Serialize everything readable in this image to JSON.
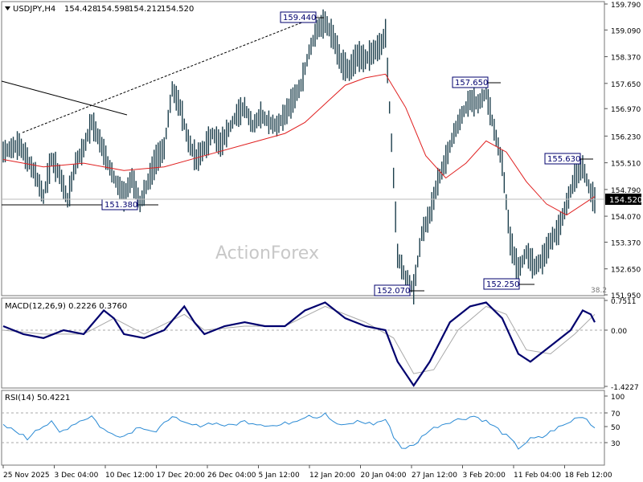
{
  "chart_data": {
    "type": "line",
    "symbol_header": "USDJPY,H4",
    "ohlc": {
      "open": "154.428",
      "high": "154.598",
      "low": "154.212",
      "close": "154.520"
    },
    "watermark": "ActionForex",
    "price_axis": {
      "min": 151.95,
      "max": 159.79,
      "ticks": [
        "159.790",
        "159.090",
        "158.370",
        "157.650",
        "156.970",
        "156.230",
        "155.510",
        "154.790",
        "154.070",
        "153.370",
        "152.650",
        "151.950"
      ]
    },
    "current_price": "154.520",
    "fib_label": "38.2",
    "x_labels": [
      "25 Nov 2025",
      "3 Dec 04:00",
      "10 Dec 12:00",
      "17 Dec 20:00",
      "26 Dec 04:00",
      "5 Jan 12:00",
      "12 Jan 20:00",
      "20 Jan 04:00",
      "27 Jan 12:00",
      "3 Feb 20:00",
      "11 Feb 04:00",
      "18 Feb 12:00"
    ],
    "annotations": [
      {
        "label": "159.440",
        "value": 159.44
      },
      {
        "label": "157.650",
        "value": 157.65
      },
      {
        "label": "155.630",
        "value": 155.63
      },
      {
        "label": "151.380",
        "value": 151.38
      },
      {
        "label": "152.070",
        "value": 152.07
      },
      {
        "label": "152.250",
        "value": 152.25
      }
    ],
    "price_series": [
      [
        0,
        155.8
      ],
      [
        4,
        155.9
      ],
      [
        8,
        156.0
      ],
      [
        12,
        155.6
      ],
      [
        16,
        155.2
      ],
      [
        20,
        154.6
      ],
      [
        24,
        155.6
      ],
      [
        28,
        155.2
      ],
      [
        32,
        154.5
      ],
      [
        36,
        155.5
      ],
      [
        40,
        155.9
      ],
      [
        44,
        156.6
      ],
      [
        48,
        156.1
      ],
      [
        52,
        155.5
      ],
      [
        56,
        155.0
      ],
      [
        60,
        154.6
      ],
      [
        64,
        155.1
      ],
      [
        68,
        154.4
      ],
      [
        72,
        155.0
      ],
      [
        76,
        155.6
      ],
      [
        80,
        155.9
      ],
      [
        84,
        157.5
      ],
      [
        88,
        157.0
      ],
      [
        92,
        156.1
      ],
      [
        96,
        155.6
      ],
      [
        100,
        155.9
      ],
      [
        104,
        156.3
      ],
      [
        108,
        156.0
      ],
      [
        112,
        156.4
      ],
      [
        116,
        156.8
      ],
      [
        120,
        157.0
      ],
      [
        124,
        156.5
      ],
      [
        128,
        156.8
      ],
      [
        132,
        156.6
      ],
      [
        136,
        156.5
      ],
      [
        140,
        156.8
      ],
      [
        144,
        157.2
      ],
      [
        148,
        157.6
      ],
      [
        152,
        158.5
      ],
      [
        156,
        159.1
      ],
      [
        160,
        159.3
      ],
      [
        164,
        158.9
      ],
      [
        168,
        158.2
      ],
      [
        172,
        158.0
      ],
      [
        176,
        158.4
      ],
      [
        180,
        158.3
      ],
      [
        184,
        158.5
      ],
      [
        188,
        158.7
      ],
      [
        190,
        159.0
      ],
      [
        192,
        157.0
      ],
      [
        194,
        155.1
      ],
      [
        196,
        153.0
      ],
      [
        200,
        152.4
      ],
      [
        204,
        152.1
      ],
      [
        208,
        153.6
      ],
      [
        212,
        154.1
      ],
      [
        216,
        155.0
      ],
      [
        220,
        155.6
      ],
      [
        224,
        156.3
      ],
      [
        228,
        156.8
      ],
      [
        232,
        157.2
      ],
      [
        236,
        157.1
      ],
      [
        240,
        157.4
      ],
      [
        244,
        156.4
      ],
      [
        248,
        155.5
      ],
      [
        252,
        153.4
      ],
      [
        256,
        152.6
      ],
      [
        260,
        153.1
      ],
      [
        264,
        152.7
      ],
      [
        268,
        152.9
      ],
      [
        272,
        153.4
      ],
      [
        276,
        153.7
      ],
      [
        280,
        154.4
      ],
      [
        284,
        155.1
      ],
      [
        288,
        155.4
      ],
      [
        292,
        154.7
      ],
      [
        294,
        154.5
      ]
    ],
    "ma_series": [
      [
        0,
        155.6
      ],
      [
        20,
        155.4
      ],
      [
        40,
        155.5
      ],
      [
        60,
        155.3
      ],
      [
        80,
        155.4
      ],
      [
        100,
        155.7
      ],
      [
        120,
        156.0
      ],
      [
        140,
        156.3
      ],
      [
        150,
        156.6
      ],
      [
        160,
        157.1
      ],
      [
        170,
        157.6
      ],
      [
        180,
        157.8
      ],
      [
        190,
        157.9
      ],
      [
        200,
        157.0
      ],
      [
        210,
        155.7
      ],
      [
        220,
        155.1
      ],
      [
        230,
        155.5
      ],
      [
        240,
        156.1
      ],
      [
        250,
        155.8
      ],
      [
        260,
        155.0
      ],
      [
        270,
        154.4
      ],
      [
        280,
        154.1
      ],
      [
        294,
        154.6
      ]
    ],
    "macd": {
      "label": "MACD(12,26,9) 0.2226 0.3760",
      "min": -1.4227,
      "max": 0.7511,
      "ticks": [
        "0.7511",
        "0.00",
        "-1.4227"
      ],
      "series": [
        [
          0,
          0.1
        ],
        [
          10,
          -0.1
        ],
        [
          20,
          -0.2
        ],
        [
          30,
          0.0
        ],
        [
          40,
          -0.1
        ],
        [
          50,
          0.5
        ],
        [
          55,
          0.3
        ],
        [
          60,
          -0.1
        ],
        [
          70,
          -0.2
        ],
        [
          80,
          0.0
        ],
        [
          90,
          0.6
        ],
        [
          95,
          0.2
        ],
        [
          100,
          -0.1
        ],
        [
          110,
          0.1
        ],
        [
          120,
          0.2
        ],
        [
          130,
          0.1
        ],
        [
          140,
          0.1
        ],
        [
          150,
          0.5
        ],
        [
          160,
          0.7
        ],
        [
          170,
          0.3
        ],
        [
          180,
          0.1
        ],
        [
          190,
          0.0
        ],
        [
          196,
          -0.8
        ],
        [
          204,
          -1.4
        ],
        [
          212,
          -0.8
        ],
        [
          222,
          0.2
        ],
        [
          232,
          0.6
        ],
        [
          240,
          0.7
        ],
        [
          248,
          0.3
        ],
        [
          256,
          -0.6
        ],
        [
          262,
          -0.8
        ],
        [
          272,
          -0.4
        ],
        [
          282,
          0.0
        ],
        [
          288,
          0.5
        ],
        [
          292,
          0.4
        ],
        [
          294,
          0.2
        ]
      ],
      "signal": [
        [
          0,
          0.0
        ],
        [
          20,
          -0.1
        ],
        [
          40,
          -0.1
        ],
        [
          55,
          0.3
        ],
        [
          70,
          -0.1
        ],
        [
          90,
          0.4
        ],
        [
          100,
          0.0
        ],
        [
          120,
          0.1
        ],
        [
          140,
          0.1
        ],
        [
          160,
          0.6
        ],
        [
          180,
          0.2
        ],
        [
          194,
          -0.2
        ],
        [
          204,
          -1.1
        ],
        [
          214,
          -1.0
        ],
        [
          226,
          0.0
        ],
        [
          240,
          0.6
        ],
        [
          250,
          0.4
        ],
        [
          260,
          -0.5
        ],
        [
          272,
          -0.6
        ],
        [
          284,
          -0.1
        ],
        [
          294,
          0.4
        ]
      ]
    },
    "rsi": {
      "label": "RSI(14) 50.4221",
      "min": 0,
      "max": 100,
      "ticks": [
        "100",
        "70",
        "50",
        "30"
      ],
      "series": [
        [
          0,
          55
        ],
        [
          8,
          45
        ],
        [
          12,
          35
        ],
        [
          16,
          50
        ],
        [
          24,
          60
        ],
        [
          28,
          45
        ],
        [
          36,
          60
        ],
        [
          44,
          70
        ],
        [
          48,
          55
        ],
        [
          52,
          45
        ],
        [
          60,
          40
        ],
        [
          68,
          55
        ],
        [
          76,
          45
        ],
        [
          84,
          72
        ],
        [
          88,
          60
        ],
        [
          96,
          55
        ],
        [
          104,
          60
        ],
        [
          112,
          55
        ],
        [
          120,
          62
        ],
        [
          128,
          58
        ],
        [
          136,
          55
        ],
        [
          144,
          62
        ],
        [
          152,
          72
        ],
        [
          156,
          68
        ],
        [
          160,
          75
        ],
        [
          164,
          60
        ],
        [
          170,
          55
        ],
        [
          176,
          62
        ],
        [
          184,
          58
        ],
        [
          190,
          65
        ],
        [
          194,
          40
        ],
        [
          198,
          22
        ],
        [
          204,
          25
        ],
        [
          210,
          45
        ],
        [
          216,
          55
        ],
        [
          222,
          62
        ],
        [
          228,
          66
        ],
        [
          234,
          70
        ],
        [
          240,
          62
        ],
        [
          246,
          50
        ],
        [
          252,
          35
        ],
        [
          256,
          22
        ],
        [
          262,
          35
        ],
        [
          268,
          38
        ],
        [
          274,
          50
        ],
        [
          280,
          58
        ],
        [
          286,
          70
        ],
        [
          290,
          66
        ],
        [
          294,
          52
        ]
      ]
    },
    "colors": {
      "candles": "#1c3f4c",
      "ma": "#e02020",
      "macd": "#00006e",
      "signal": "#a8a8a8",
      "rsi": "#2a8ad4",
      "grid": "#999999"
    }
  }
}
